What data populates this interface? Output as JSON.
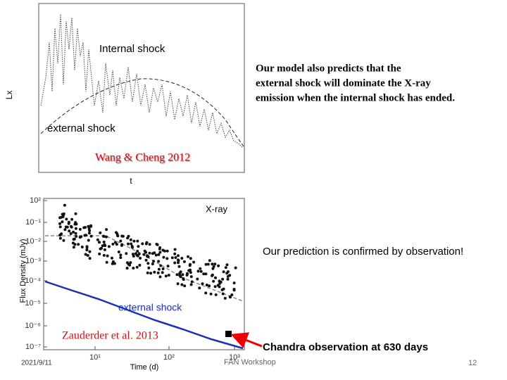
{
  "figures": [
    {
      "y_label": "Lx",
      "x_label": "t",
      "annotations": [
        "Internal shock",
        "external shock"
      ],
      "credit": "Wang & Cheng 2012"
    },
    {
      "title": "X-ray",
      "y_label": "Flux Density  (mJy)",
      "x_label": "Time  (d)",
      "y_ticks": [
        "10²",
        "10⁻¹",
        "10⁻²",
        "10⁻³",
        "10⁻⁴",
        "10⁻⁵",
        "10⁻⁶",
        "10⁻⁷"
      ],
      "x_ticks": [
        "10¹",
        "10²",
        "10³"
      ],
      "annotation": "external shock",
      "credit": "Zauderder et al. 2013"
    }
  ],
  "notes": [
    "Our model also predicts that the",
    "external shock will dominate the X-ray",
    "emission when the internal shock has ended.",
    "Our prediction is  confirmed by observation!"
  ],
  "callout": "Chandra observation at 630 days",
  "footer": {
    "date": "2021/9/11",
    "event": "FAN Workshop",
    "page": "12"
  }
}
